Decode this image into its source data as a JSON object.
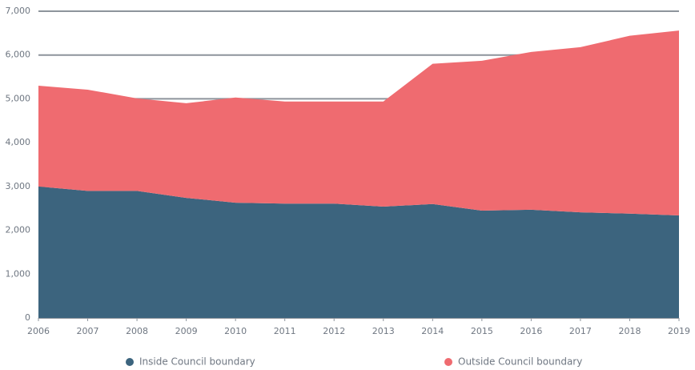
{
  "chart_data": {
    "type": "stacked-area",
    "x": [
      2006,
      2007,
      2008,
      2009,
      2010,
      2011,
      2012,
      2013,
      2014,
      2015,
      2016,
      2017,
      2018,
      2019
    ],
    "xlim": [
      2006,
      2019
    ],
    "xticks": [
      2006,
      2007,
      2008,
      2009,
      2010,
      2011,
      2012,
      2013,
      2014,
      2015,
      2016,
      2017,
      2018,
      2019
    ],
    "ylim": [
      0,
      7000
    ],
    "yticks": [
      0,
      {
        "value": 1000,
        "label": "1,000"
      },
      {
        "value": 2000,
        "label": "2,000"
      },
      {
        "value": 3000,
        "label": "3,000"
      },
      {
        "value": 4000,
        "label": "4,000"
      },
      {
        "value": 5000,
        "label": "5,000"
      },
      {
        "value": 6000,
        "label": "6,000"
      },
      {
        "value": 7000,
        "label": "7,000"
      }
    ],
    "grid": true,
    "legend": "bottom",
    "series": [
      {
        "name": "Inside Council boundary",
        "color": "#3c647e",
        "values": [
          3000,
          2900,
          2900,
          2740,
          2630,
          2610,
          2610,
          2540,
          2600,
          2450,
          2470,
          2410,
          2380,
          2340
        ]
      },
      {
        "name": "Outside Council boundary",
        "color": "#ef6b70",
        "values": [
          2300,
          2310,
          2110,
          2160,
          2400,
          2330,
          2330,
          2400,
          3200,
          3420,
          3600,
          3770,
          4060,
          4220
        ]
      }
    ]
  }
}
